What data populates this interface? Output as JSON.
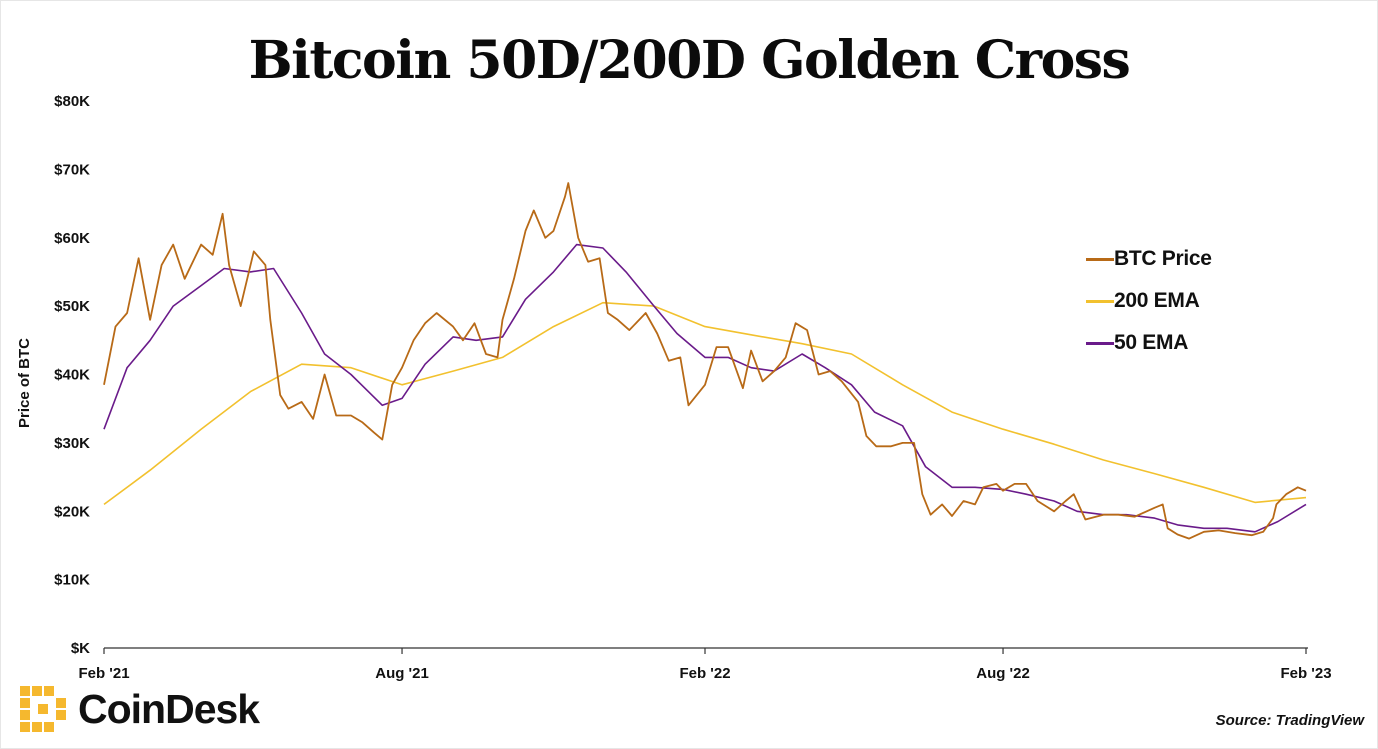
{
  "title": "Bitcoin 50D/200D Golden Cross",
  "source": "Source: TradingView",
  "logo_text": "CoinDesk",
  "chart_data": {
    "type": "line",
    "title": "Bitcoin 50D/200D Golden Cross",
    "xlabel": "",
    "ylabel": "Price of BTC",
    "x_tick_labels": [
      "Feb '21",
      "Aug '21",
      "Feb '22",
      "Aug '22",
      "Feb '23"
    ],
    "x_tick_dates": [
      "2021-02-01",
      "2021-08-01",
      "2022-02-01",
      "2022-08-01",
      "2023-02-01"
    ],
    "y_tick_labels": [
      "$K",
      "$10K",
      "$20K",
      "$30K",
      "$40K",
      "$50K",
      "$60K",
      "$70K",
      "$80K"
    ],
    "ylim": [
      0,
      80000
    ],
    "xlim": [
      "2021-02-01",
      "2023-02-01"
    ],
    "grid": false,
    "legend_position": "right",
    "series": [
      {
        "name": "BTC Price",
        "color": "#b86a17",
        "x": [
          "2021-02-01",
          "2021-02-08",
          "2021-02-15",
          "2021-02-22",
          "2021-03-01",
          "2021-03-08",
          "2021-03-15",
          "2021-03-22",
          "2021-04-01",
          "2021-04-08",
          "2021-04-14",
          "2021-04-18",
          "2021-04-25",
          "2021-05-03",
          "2021-05-10",
          "2021-05-13",
          "2021-05-19",
          "2021-05-24",
          "2021-06-01",
          "2021-06-08",
          "2021-06-15",
          "2021-06-22",
          "2021-07-01",
          "2021-07-08",
          "2021-07-15",
          "2021-07-20",
          "2021-07-26",
          "2021-08-01",
          "2021-08-08",
          "2021-08-15",
          "2021-08-22",
          "2021-09-01",
          "2021-09-07",
          "2021-09-14",
          "2021-09-21",
          "2021-09-28",
          "2021-10-01",
          "2021-10-08",
          "2021-10-15",
          "2021-10-20",
          "2021-10-27",
          "2021-11-01",
          "2021-11-08",
          "2021-11-10",
          "2021-11-16",
          "2021-11-22",
          "2021-11-29",
          "2021-12-04",
          "2021-12-10",
          "2021-12-17",
          "2021-12-27",
          "2022-01-03",
          "2022-01-10",
          "2022-01-17",
          "2022-01-22",
          "2022-02-01",
          "2022-02-08",
          "2022-02-15",
          "2022-02-24",
          "2022-03-01",
          "2022-03-08",
          "2022-03-15",
          "2022-03-22",
          "2022-03-28",
          "2022-04-04",
          "2022-04-11",
          "2022-04-18",
          "2022-04-25",
          "2022-05-05",
          "2022-05-10",
          "2022-05-16",
          "2022-05-25",
          "2022-06-01",
          "2022-06-08",
          "2022-06-13",
          "2022-06-18",
          "2022-06-25",
          "2022-07-01",
          "2022-07-08",
          "2022-07-15",
          "2022-07-20",
          "2022-07-28",
          "2022-08-01",
          "2022-08-08",
          "2022-08-15",
          "2022-08-22",
          "2022-09-01",
          "2022-09-08",
          "2022-09-13",
          "2022-09-20",
          "2022-10-01",
          "2022-10-10",
          "2022-10-20",
          "2022-11-01",
          "2022-11-06",
          "2022-11-09",
          "2022-11-15",
          "2022-11-22",
          "2022-12-01",
          "2022-12-10",
          "2022-12-20",
          "2022-12-30",
          "2023-01-06",
          "2023-01-12",
          "2023-01-14",
          "2023-01-20",
          "2023-01-27",
          "2023-02-01"
        ],
        "values": [
          38500,
          47000,
          49000,
          57000,
          48000,
          56000,
          59000,
          54000,
          59000,
          57500,
          63500,
          56000,
          50000,
          58000,
          56000,
          48000,
          37000,
          35000,
          36000,
          33500,
          40000,
          34000,
          34000,
          33000,
          31500,
          30500,
          38500,
          41000,
          45000,
          47500,
          49000,
          47000,
          45000,
          47500,
          43000,
          42500,
          48000,
          54000,
          61000,
          64000,
          60000,
          61000,
          66000,
          68000,
          60000,
          56500,
          57000,
          49000,
          48000,
          46500,
          49000,
          46000,
          42000,
          42500,
          35500,
          38500,
          44000,
          44000,
          38000,
          43500,
          39000,
          40500,
          42500,
          47500,
          46500,
          40000,
          40500,
          39000,
          36000,
          31000,
          29500,
          29500,
          30000,
          30000,
          22500,
          19500,
          21000,
          19300,
          21500,
          21000,
          23500,
          24000,
          23000,
          24000,
          24000,
          21500,
          20000,
          21500,
          22500,
          18800,
          19500,
          19500,
          19200,
          20500,
          21000,
          17500,
          16600,
          16000,
          17000,
          17200,
          16800,
          16500,
          17000,
          19000,
          21000,
          22500,
          23500,
          23000
        ]
      },
      {
        "name": "200 EMA",
        "color": "#f2c12e",
        "x": [
          "2021-02-01",
          "2021-03-01",
          "2021-04-01",
          "2021-05-01",
          "2021-06-01",
          "2021-07-01",
          "2021-08-01",
          "2021-09-01",
          "2021-10-01",
          "2021-11-01",
          "2021-12-01",
          "2022-01-01",
          "2022-02-01",
          "2022-03-01",
          "2022-04-01",
          "2022-05-01",
          "2022-06-01",
          "2022-07-01",
          "2022-08-01",
          "2022-09-01",
          "2022-10-01",
          "2022-11-01",
          "2022-12-01",
          "2023-01-01",
          "2023-02-01"
        ],
        "values": [
          21000,
          26000,
          32000,
          37500,
          41500,
          41000,
          38500,
          40500,
          42500,
          47000,
          50500,
          50000,
          47000,
          45800,
          44500,
          43000,
          38500,
          34500,
          32000,
          29800,
          27500,
          25500,
          23500,
          21300,
          22000
        ]
      },
      {
        "name": "50 EMA",
        "color": "#6a1b8a",
        "x": [
          "2021-02-01",
          "2021-02-15",
          "2021-03-01",
          "2021-03-15",
          "2021-04-01",
          "2021-04-15",
          "2021-05-01",
          "2021-05-15",
          "2021-06-01",
          "2021-06-15",
          "2021-07-01",
          "2021-07-20",
          "2021-08-01",
          "2021-08-15",
          "2021-09-01",
          "2021-09-15",
          "2021-10-01",
          "2021-10-15",
          "2021-11-01",
          "2021-11-15",
          "2021-12-01",
          "2021-12-15",
          "2022-01-01",
          "2022-01-15",
          "2022-02-01",
          "2022-02-15",
          "2022-03-01",
          "2022-03-15",
          "2022-04-01",
          "2022-04-15",
          "2022-05-01",
          "2022-05-15",
          "2022-06-01",
          "2022-06-15",
          "2022-07-01",
          "2022-07-15",
          "2022-08-01",
          "2022-08-15",
          "2022-09-01",
          "2022-09-15",
          "2022-10-01",
          "2022-10-15",
          "2022-11-01",
          "2022-11-15",
          "2022-12-01",
          "2022-12-15",
          "2023-01-01",
          "2023-01-15",
          "2023-02-01"
        ],
        "values": [
          32000,
          41000,
          45000,
          50000,
          53000,
          55500,
          55000,
          55500,
          49000,
          43000,
          40000,
          35500,
          36500,
          41500,
          45500,
          45000,
          45500,
          51000,
          55000,
          59000,
          58500,
          55000,
          50000,
          46000,
          42500,
          42500,
          41000,
          40500,
          43000,
          41000,
          38500,
          34500,
          32500,
          26500,
          23500,
          23500,
          23200,
          22500,
          21500,
          20000,
          19500,
          19500,
          19000,
          18000,
          17500,
          17500,
          17000,
          18500,
          21000
        ]
      }
    ]
  }
}
